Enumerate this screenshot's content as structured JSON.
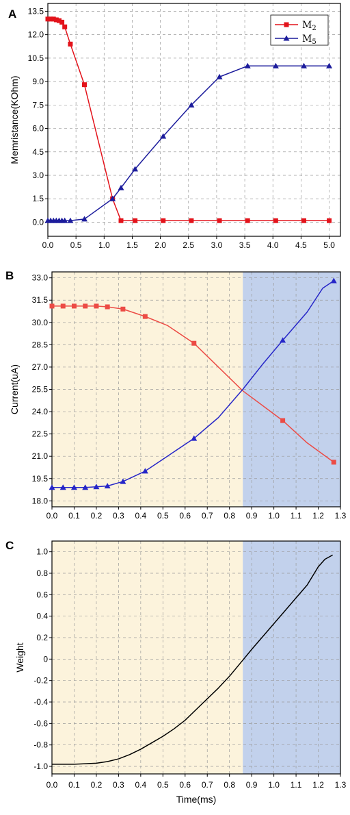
{
  "colors": {
    "m2": "#e3131b",
    "m5": "#1c1c9c",
    "b_red": "#ec4b45",
    "b_blue": "#2626c8",
    "weight": "#000000",
    "shade_yellow": "#fcf3dc",
    "shade_blue": "#c2d1ec"
  },
  "chart_data": [
    {
      "panel": "A",
      "type": "line",
      "xlabel": "",
      "ylabel": "Memristance(KOhm)",
      "xlim": [
        0,
        5.2
      ],
      "ylim": [
        -0.9,
        14.0
      ],
      "xticks": [
        "0.0",
        "0.5",
        "1.0",
        "1.5",
        "2.0",
        "2.5",
        "3.0",
        "3.5",
        "4.0",
        "4.5",
        "5.0"
      ],
      "yticks": [
        "0.0",
        "1.5",
        "3.0",
        "4.5",
        "6.0",
        "7.5",
        "9.0",
        "10.5",
        "12.0",
        "13.5"
      ],
      "grid": true,
      "legend_position": "top-right",
      "series": [
        {
          "name": "M",
          "sub": "2",
          "marker": "square",
          "x": [
            0.0,
            0.05,
            0.1,
            0.15,
            0.2,
            0.25,
            0.3,
            0.4,
            0.65,
            1.15,
            1.3,
            1.55,
            2.05,
            2.55,
            3.05,
            3.55,
            4.05,
            4.55,
            5.0
          ],
          "y": [
            13.0,
            13.0,
            13.0,
            12.95,
            12.9,
            12.8,
            12.5,
            11.4,
            8.8,
            1.5,
            0.1,
            0.1,
            0.1,
            0.1,
            0.1,
            0.1,
            0.1,
            0.1,
            0.1
          ]
        },
        {
          "name": "M",
          "sub": "5",
          "marker": "triangle",
          "x": [
            0.0,
            0.05,
            0.1,
            0.15,
            0.2,
            0.25,
            0.3,
            0.4,
            0.65,
            1.15,
            1.3,
            1.55,
            2.05,
            2.55,
            3.05,
            3.55,
            4.05,
            4.55,
            5.0
          ],
          "y": [
            0.1,
            0.1,
            0.1,
            0.1,
            0.1,
            0.1,
            0.1,
            0.1,
            0.2,
            1.5,
            2.2,
            3.4,
            5.5,
            7.5,
            9.3,
            10.0,
            10.0,
            10.0,
            10.0
          ]
        }
      ]
    },
    {
      "panel": "B",
      "type": "line",
      "xlabel": "",
      "ylabel": "Current(uA)",
      "xlim": [
        0,
        1.3
      ],
      "ylim": [
        17.6,
        33.4
      ],
      "xticks": [
        "0.0",
        "0.1",
        "0.2",
        "0.3",
        "0.4",
        "0.5",
        "0.6",
        "0.7",
        "0.8",
        "0.9",
        "1.0",
        "1.1",
        "1.2",
        "1.3"
      ],
      "yticks": [
        "18.0",
        "19.5",
        "21.0",
        "22.5",
        "24.0",
        "25.5",
        "27.0",
        "28.5",
        "30.0",
        "31.5",
        "33.0"
      ],
      "grid": true,
      "shade_split_x": 0.86,
      "series": [
        {
          "name": "",
          "marker": "square",
          "x": [
            0.0,
            0.05,
            0.1,
            0.15,
            0.2,
            0.25,
            0.32,
            0.42,
            0.52,
            0.64,
            0.75,
            0.86,
            0.95,
            1.04,
            1.15,
            1.27
          ],
          "y": [
            31.1,
            31.1,
            31.1,
            31.1,
            31.1,
            31.05,
            30.9,
            30.4,
            29.8,
            28.6,
            27.0,
            25.4,
            24.4,
            23.4,
            21.9,
            20.6
          ],
          "markers_at": [
            0,
            1,
            2,
            3,
            4,
            5,
            6,
            7,
            9,
            13,
            15
          ]
        },
        {
          "name": "",
          "marker": "triangle",
          "x": [
            0.0,
            0.05,
            0.1,
            0.15,
            0.2,
            0.25,
            0.32,
            0.42,
            0.52,
            0.64,
            0.75,
            0.86,
            0.95,
            1.04,
            1.15,
            1.22,
            1.27
          ],
          "y": [
            18.9,
            18.9,
            18.9,
            18.9,
            18.95,
            19.0,
            19.3,
            20.0,
            21.0,
            22.2,
            23.6,
            25.5,
            27.2,
            28.8,
            30.7,
            32.3,
            32.8
          ],
          "markers_at": [
            0,
            1,
            2,
            3,
            4,
            5,
            6,
            7,
            9,
            13,
            16
          ]
        }
      ]
    },
    {
      "panel": "C",
      "type": "line",
      "xlabel": "Time(ms)",
      "ylabel": "Weight",
      "xlim": [
        0,
        1.3
      ],
      "ylim": [
        -1.07,
        1.1
      ],
      "xticks": [
        "0.0",
        "0.1",
        "0.2",
        "0.3",
        "0.4",
        "0.5",
        "0.6",
        "0.7",
        "0.8",
        "0.9",
        "1.0",
        "1.1",
        "1.2",
        "1.3"
      ],
      "yticks": [
        "-1.0",
        "-0.8",
        "-0.6",
        "-0.4",
        "-0.2",
        "0",
        "0.2",
        "0.4",
        "0.6",
        "0.8",
        "1.0"
      ],
      "grid": true,
      "shade_split_x": 0.86,
      "series": [
        {
          "name": "",
          "x": [
            0.0,
            0.1,
            0.2,
            0.25,
            0.3,
            0.35,
            0.4,
            0.45,
            0.5,
            0.55,
            0.6,
            0.65,
            0.7,
            0.75,
            0.8,
            0.86,
            0.9,
            0.95,
            1.0,
            1.05,
            1.1,
            1.15,
            1.2,
            1.23,
            1.265
          ],
          "y": [
            -0.98,
            -0.98,
            -0.97,
            -0.955,
            -0.93,
            -0.89,
            -0.84,
            -0.78,
            -0.72,
            -0.65,
            -0.57,
            -0.47,
            -0.37,
            -0.27,
            -0.16,
            -0.01,
            0.09,
            0.21,
            0.33,
            0.45,
            0.57,
            0.69,
            0.86,
            0.93,
            0.97
          ]
        }
      ]
    }
  ]
}
